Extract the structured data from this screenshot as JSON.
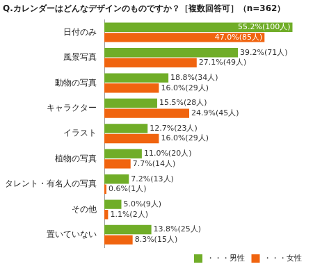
{
  "chart_data": {
    "type": "bar",
    "orientation": "horizontal",
    "title": "Q.カレンダーはどんなデザインのものですか？［複数回答可］（n=362）",
    "categories": [
      "日付のみ",
      "風景写真",
      "動物の写真",
      "キャラクター",
      "イラスト",
      "植物の写真",
      "タレント・有名人の写真",
      "その他",
      "置いていない"
    ],
    "series": [
      {
        "name": "・・・男性",
        "color": "#70ad28",
        "values": [
          55.2,
          39.2,
          18.8,
          15.5,
          12.7,
          11.0,
          7.2,
          5.0,
          13.8
        ],
        "value_labels": [
          "55.2%(100人)",
          "39.2%(71人)",
          "18.8%(34人)",
          "15.5%(28人)",
          "12.7%(23人)",
          "11.0%(20人)",
          "7.2%(13人)",
          "5.0%(9人)",
          "13.8%(25人)"
        ]
      },
      {
        "name": "・・・女性",
        "color": "#f0640f",
        "values": [
          47.0,
          27.1,
          16.0,
          24.9,
          16.0,
          7.7,
          0.6,
          1.1,
          8.3
        ],
        "value_labels": [
          "47.0%(85人)",
          "27.1%(49人)",
          "16.0%(29人)",
          "24.9%(45人)",
          "16.0%(29人)",
          "7.7%(14人)",
          "0.6%(1人)",
          "1.1%(2人)",
          "8.3%(15人)"
        ]
      }
    ],
    "xlim": [
      0,
      60
    ],
    "grid": false,
    "legend": "bottom-right",
    "data_labels": true,
    "tick_labels": "y"
  }
}
